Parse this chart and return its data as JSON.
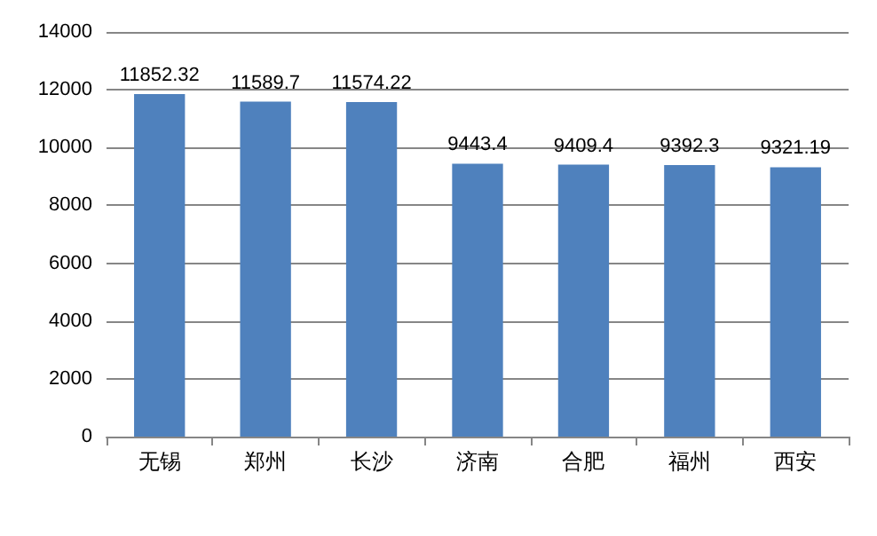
{
  "chart_data": {
    "type": "bar",
    "categories": [
      "无锡",
      "郑州",
      "长沙",
      "济南",
      "合肥",
      "福州",
      "西安"
    ],
    "values": [
      11852.32,
      11589.7,
      11574.22,
      9443.4,
      9409.4,
      9392.3,
      9321.19
    ],
    "color": "#4f81bd",
    "ylim": [
      0,
      14000
    ],
    "yticks": [
      0,
      2000,
      4000,
      6000,
      8000,
      10000,
      12000,
      14000
    ],
    "grid": "y",
    "data_labels": true
  }
}
